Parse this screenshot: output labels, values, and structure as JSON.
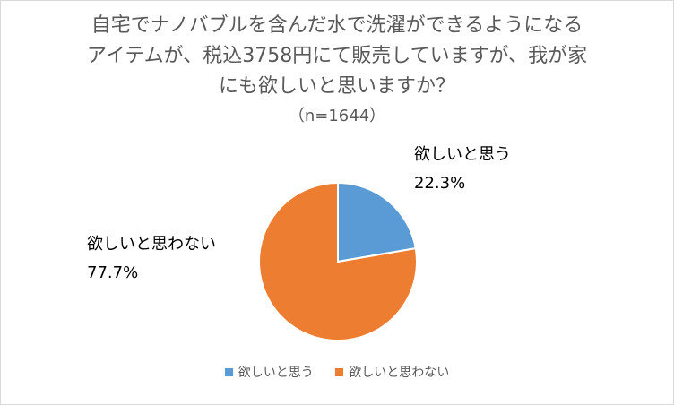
{
  "chart_data": {
    "type": "pie",
    "title_lines": [
      "自宅でナノバブルを含んだ水で洗濯ができるようになる",
      "アイテムが、税込3758円にて販売していますが、我が家",
      "にも欲しいと思いますか？"
    ],
    "subtitle": "（n=1644）",
    "series": [
      {
        "name": "欲しいと思う",
        "value": 22.3,
        "label": "22.3%",
        "color": "#5b9bd5"
      },
      {
        "name": "欲しいと思わない",
        "value": 77.7,
        "label": "77.7%",
        "color": "#ed7d31"
      }
    ],
    "legend_position": "bottom"
  }
}
